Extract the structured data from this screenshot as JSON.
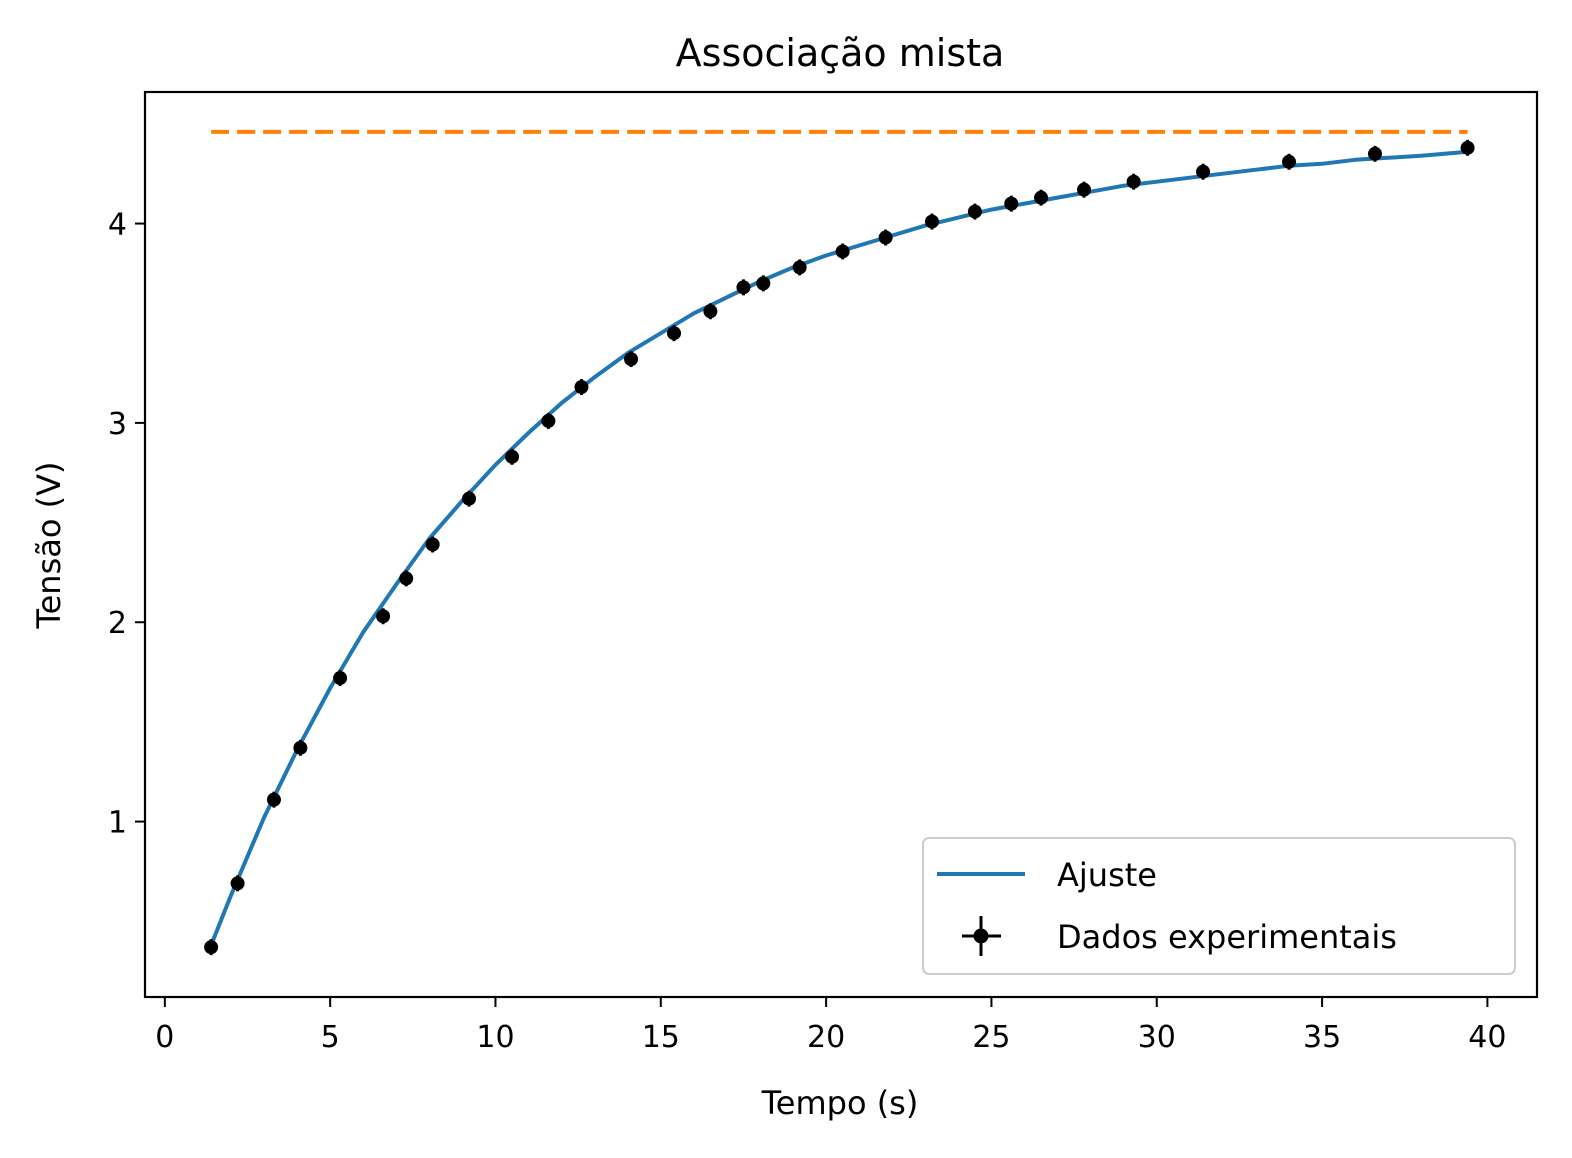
{
  "chart_data": {
    "type": "line",
    "title": "Associação mista",
    "xlabel": "Tempo (s)",
    "ylabel": "Tensão (V)",
    "xlim": [
      -0.6,
      41.5
    ],
    "ylim": [
      0.12,
      4.66
    ],
    "xticks": [
      0,
      5,
      10,
      15,
      20,
      25,
      30,
      35,
      40
    ],
    "yticks": [
      1,
      2,
      3,
      4
    ],
    "grid": false,
    "legend_position": "lower-right",
    "series": [
      {
        "name": "Ajuste",
        "kind": "fit-curve",
        "color": "#1f77b4",
        "x": [
          1.4,
          2.0,
          3.0,
          4.0,
          5.0,
          6.0,
          7.0,
          8.0,
          9.0,
          10.0,
          11.0,
          12.0,
          13.0,
          14.0,
          15.0,
          16.0,
          17.0,
          18.0,
          19.0,
          20.0,
          21.0,
          22.0,
          23.0,
          24.0,
          25.0,
          26.0,
          27.0,
          28.0,
          29.0,
          30.0,
          31.0,
          32.0,
          33.0,
          34.0,
          35.0,
          36.0,
          37.0,
          38.0,
          39.4
        ],
        "y": [
          0.38,
          0.63,
          1.02,
          1.36,
          1.67,
          1.95,
          2.19,
          2.42,
          2.61,
          2.79,
          2.95,
          3.1,
          3.23,
          3.35,
          3.45,
          3.55,
          3.63,
          3.71,
          3.78,
          3.84,
          3.89,
          3.94,
          3.99,
          4.03,
          4.07,
          4.1,
          4.13,
          4.16,
          4.19,
          4.21,
          4.23,
          4.25,
          4.27,
          4.29,
          4.3,
          4.32,
          4.33,
          4.34,
          4.36
        ]
      },
      {
        "name": "",
        "kind": "asymptote",
        "color": "#ff7f0e",
        "x": [
          1.4,
          39.4
        ],
        "y": [
          4.46,
          4.46
        ]
      },
      {
        "name": "Dados experimentais",
        "kind": "errorbar-points",
        "color": "#000000",
        "x": [
          1.4,
          2.2,
          3.3,
          4.1,
          5.3,
          6.6,
          7.3,
          8.1,
          9.2,
          10.5,
          11.6,
          12.6,
          14.1,
          15.4,
          16.5,
          17.5,
          18.1,
          19.2,
          20.5,
          21.8,
          23.2,
          24.5,
          25.6,
          26.5,
          27.8,
          29.3,
          31.4,
          34.0,
          36.6,
          39.4
        ],
        "y": [
          0.37,
          0.69,
          1.11,
          1.37,
          1.72,
          2.03,
          2.22,
          2.39,
          2.62,
          2.83,
          3.01,
          3.18,
          3.32,
          3.45,
          3.56,
          3.68,
          3.7,
          3.78,
          3.86,
          3.93,
          4.01,
          4.06,
          4.1,
          4.13,
          4.17,
          4.21,
          4.26,
          4.31,
          4.35,
          4.38
        ],
        "yerr": 0.04,
        "xerr": 0.05
      }
    ]
  }
}
